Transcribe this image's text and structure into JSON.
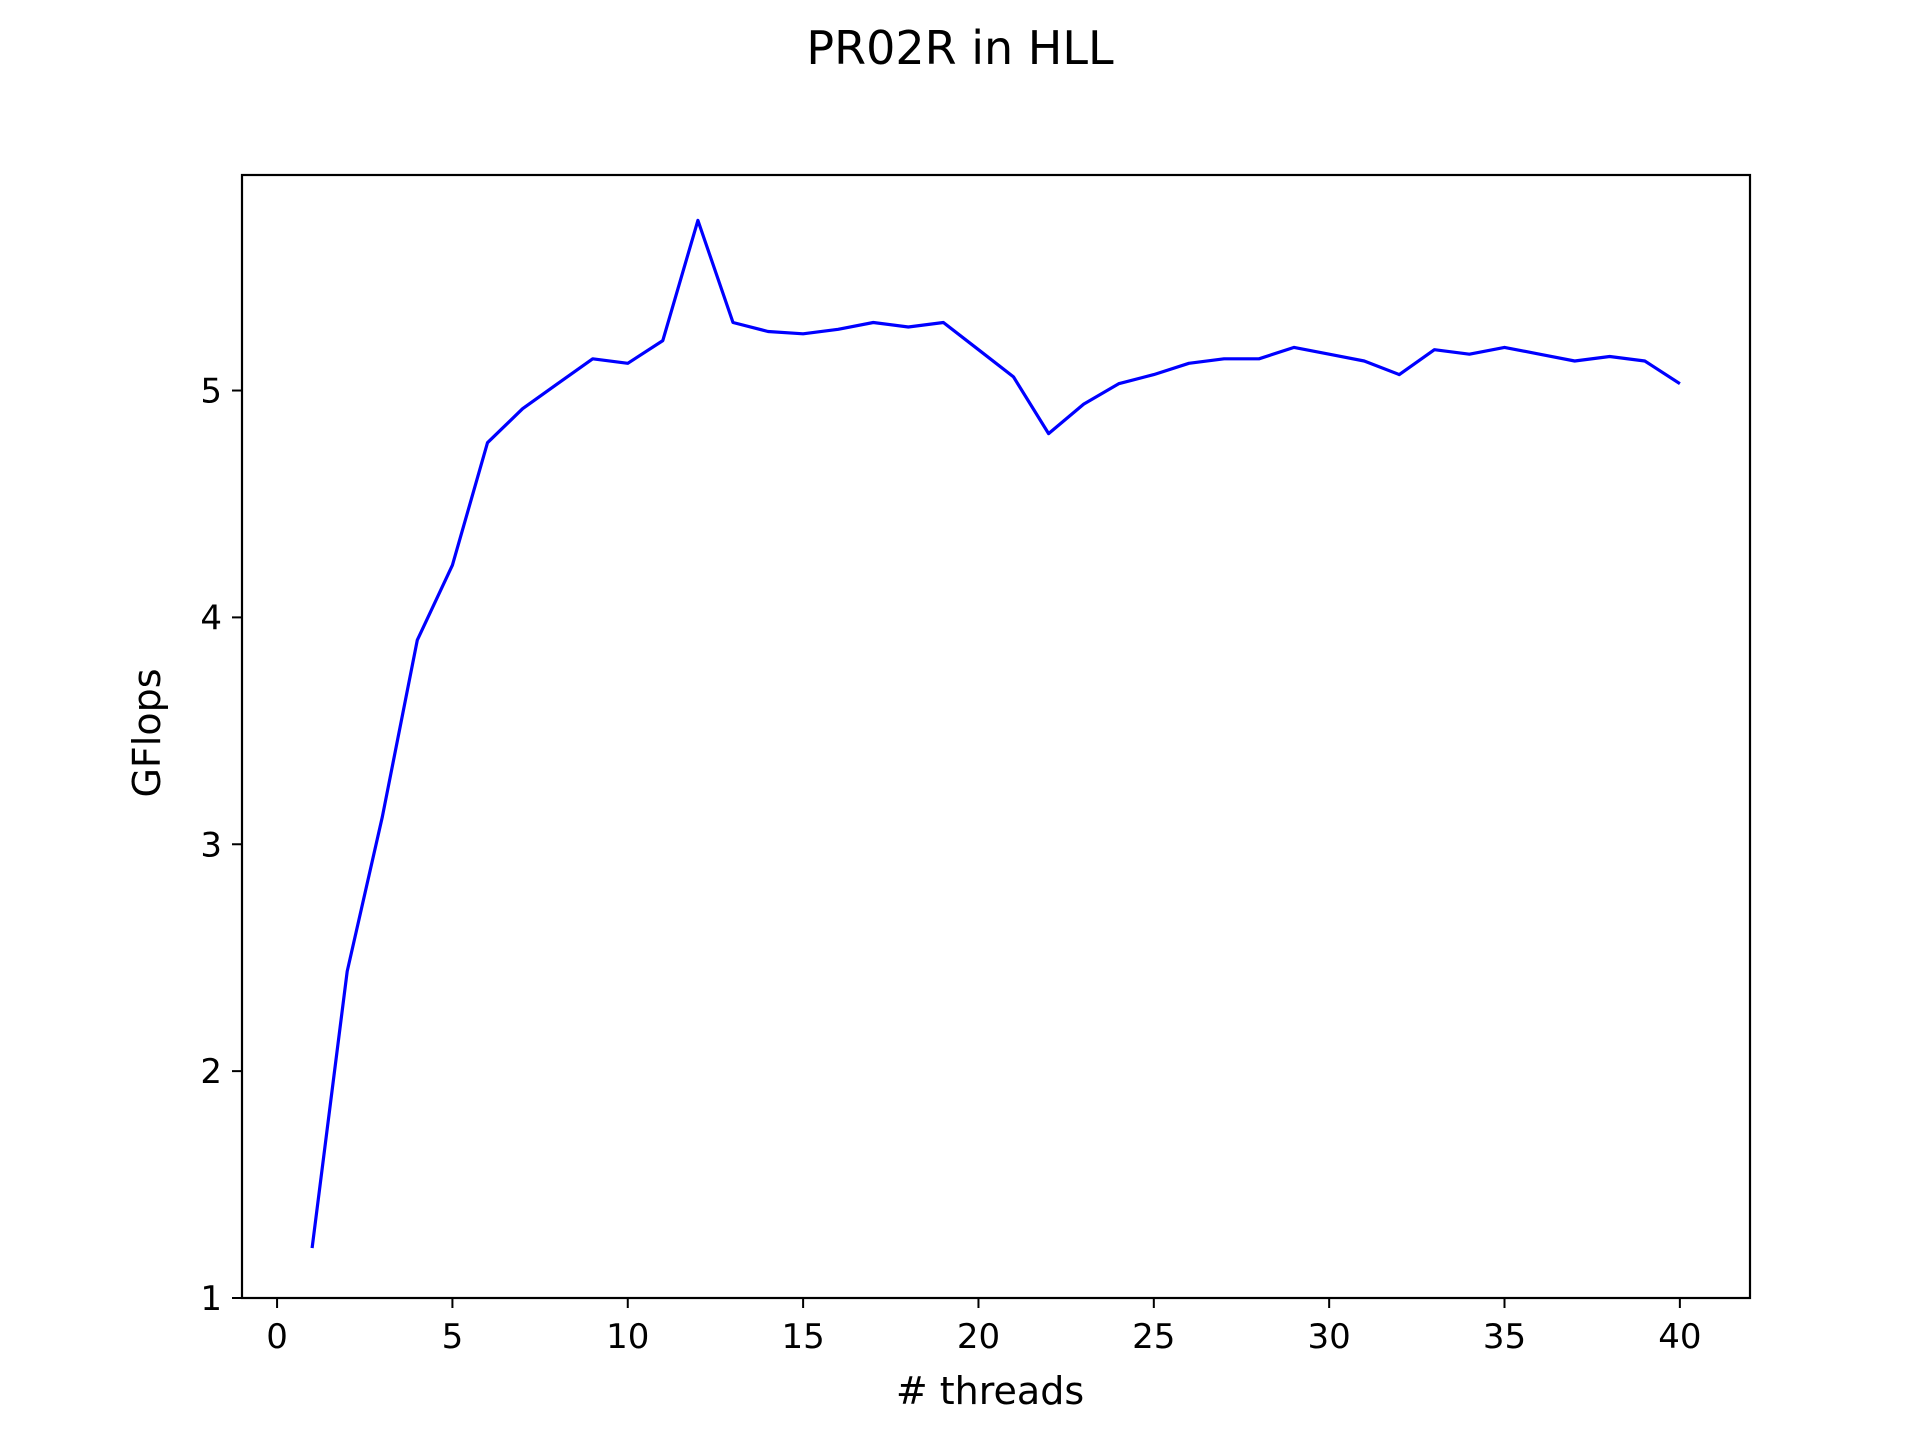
{
  "chart_data": {
    "type": "line",
    "title": "PR02R in HLL",
    "xlabel": "# threads",
    "ylabel": "GFlops",
    "xlim": [
      -1,
      42
    ],
    "ylim": [
      1,
      5.95
    ],
    "xticks": [
      0,
      5,
      10,
      15,
      20,
      25,
      30,
      35,
      40
    ],
    "yticks": [
      1,
      2,
      3,
      4,
      5
    ],
    "grid": false,
    "legend": "none",
    "series": [
      {
        "color": "#0000ff",
        "x": [
          1,
          2,
          3,
          4,
          5,
          6,
          7,
          8,
          9,
          10,
          11,
          12,
          13,
          14,
          15,
          16,
          17,
          18,
          19,
          20,
          21,
          22,
          23,
          24,
          25,
          26,
          27,
          28,
          29,
          30,
          31,
          32,
          33,
          34,
          35,
          36,
          37,
          38,
          39,
          40
        ],
        "values": [
          1.22,
          2.44,
          3.12,
          3.9,
          4.23,
          4.77,
          4.92,
          5.03,
          5.14,
          5.12,
          5.22,
          5.75,
          5.3,
          5.26,
          5.25,
          5.27,
          5.3,
          5.28,
          5.3,
          5.18,
          5.06,
          4.81,
          4.94,
          5.03,
          5.07,
          5.12,
          5.14,
          5.14,
          5.19,
          5.16,
          5.13,
          5.07,
          5.18,
          5.16,
          5.19,
          5.16,
          5.13,
          5.15,
          5.13,
          5.03
        ]
      }
    ]
  }
}
